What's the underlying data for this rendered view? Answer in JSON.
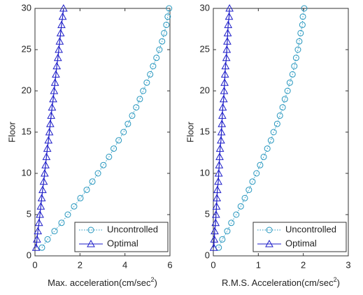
{
  "chart_data": [
    {
      "type": "line",
      "legend": "lower right",
      "ylabel": "Floor",
      "xlabel": [
        "Max. acceleration(cm/sec",
        "2",
        ")"
      ],
      "xlim": [
        0,
        6
      ],
      "xticks": [
        0,
        2,
        4,
        6
      ],
      "ylim": [
        0,
        30
      ],
      "yticks": [
        0,
        5,
        10,
        15,
        20,
        25,
        30
      ],
      "y": [
        1,
        2,
        3,
        4,
        5,
        6,
        7,
        8,
        9,
        10,
        11,
        12,
        13,
        14,
        15,
        16,
        17,
        18,
        19,
        20,
        21,
        22,
        23,
        24,
        25,
        26,
        27,
        28,
        29,
        30
      ],
      "series": [
        {
          "name": "Uncontrolled",
          "color": "#2596be",
          "marker": "circle",
          "dash": "dotted",
          "values": [
            0.31,
            0.56,
            0.87,
            1.18,
            1.46,
            1.74,
            2.02,
            2.3,
            2.55,
            2.8,
            3.04,
            3.29,
            3.5,
            3.72,
            3.94,
            4.13,
            4.32,
            4.5,
            4.66,
            4.81,
            4.97,
            5.12,
            5.25,
            5.4,
            5.53,
            5.65,
            5.74,
            5.84,
            5.9,
            5.96
          ]
        },
        {
          "name": "Optimal",
          "color": "#1c1cc8",
          "marker": "triangle",
          "dash": "solid",
          "values": [
            0.05,
            0.09,
            0.13,
            0.18,
            0.22,
            0.26,
            0.3,
            0.34,
            0.39,
            0.43,
            0.47,
            0.51,
            0.55,
            0.6,
            0.64,
            0.68,
            0.72,
            0.76,
            0.81,
            0.85,
            0.89,
            0.93,
            0.97,
            1.02,
            1.06,
            1.1,
            1.14,
            1.18,
            1.23,
            1.27
          ]
        }
      ]
    },
    {
      "type": "line",
      "legend": "lower right",
      "ylabel": "Floor",
      "xlabel": [
        "R.M.S. Acceleration(cm/sec",
        "2",
        ")"
      ],
      "xlim": [
        0,
        3
      ],
      "xticks": [
        0,
        1,
        2,
        3
      ],
      "ylim": [
        0,
        30
      ],
      "yticks": [
        0,
        5,
        10,
        15,
        20,
        25,
        30
      ],
      "y": [
        1,
        2,
        3,
        4,
        5,
        6,
        7,
        8,
        9,
        10,
        11,
        12,
        13,
        14,
        15,
        16,
        17,
        18,
        19,
        20,
        21,
        22,
        23,
        24,
        25,
        26,
        27,
        28,
        29,
        30
      ],
      "series": [
        {
          "name": "Uncontrolled",
          "color": "#2596be",
          "marker": "circle",
          "dash": "dotted",
          "values": [
            0.12,
            0.2,
            0.31,
            0.4,
            0.51,
            0.61,
            0.7,
            0.79,
            0.87,
            0.96,
            1.04,
            1.12,
            1.2,
            1.28,
            1.34,
            1.42,
            1.48,
            1.54,
            1.59,
            1.65,
            1.7,
            1.76,
            1.8,
            1.84,
            1.88,
            1.91,
            1.94,
            1.98,
            1.99,
            2.02
          ]
        },
        {
          "name": "Optimal",
          "color": "#1c1cc8",
          "marker": "triangle",
          "dash": "solid",
          "values": [
            0.01,
            0.02,
            0.03,
            0.05,
            0.06,
            0.07,
            0.08,
            0.09,
            0.11,
            0.12,
            0.13,
            0.14,
            0.15,
            0.17,
            0.18,
            0.19,
            0.2,
            0.21,
            0.23,
            0.24,
            0.25,
            0.26,
            0.27,
            0.29,
            0.3,
            0.31,
            0.32,
            0.33,
            0.35,
            0.36
          ]
        }
      ]
    }
  ]
}
